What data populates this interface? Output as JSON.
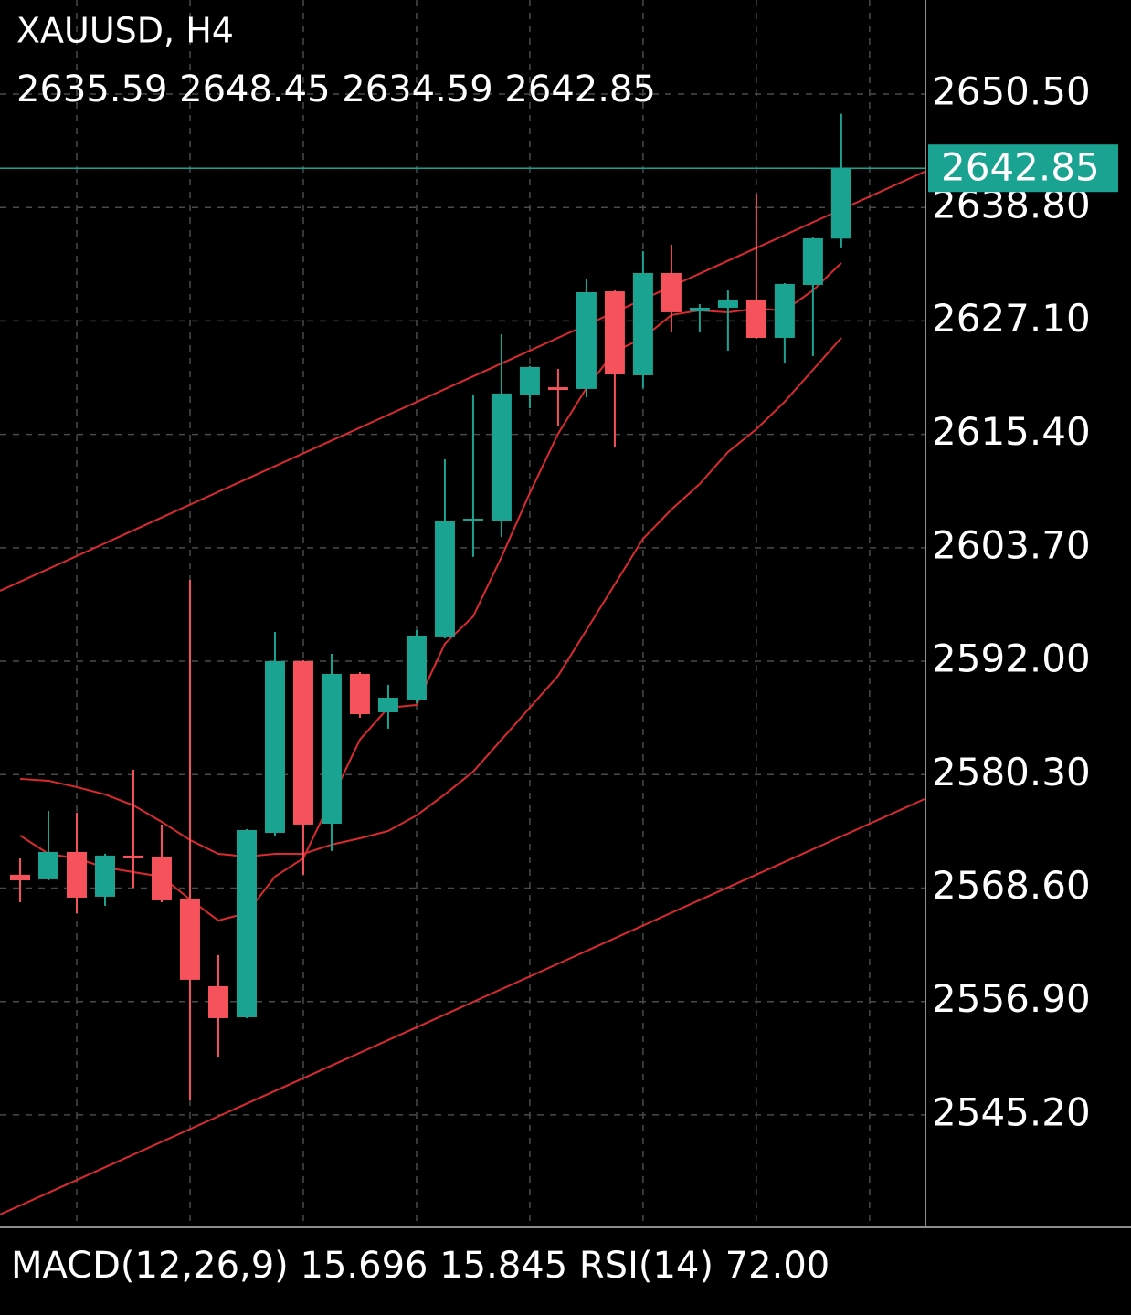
{
  "chart_data": {
    "type": "candlestick",
    "title": "XAUUSD, H4",
    "open": [
      2569.97,
      2569.5,
      2572.32,
      2567.71,
      2571.95,
      2571.85,
      2567.52,
      2558.48,
      2555.27,
      2574.3,
      2592.01,
      2575.24,
      2590.69,
      2586.73,
      2588.05,
      2594.46,
      2606.42,
      2606.51,
      2619.51,
      2620.26,
      2620.08,
      2630.15,
      2621.49,
      2632.04,
      2628.08,
      2628.46,
      2629.31,
      2625.35,
      2630.81,
      2635.59
    ],
    "high": [
      2571.66,
      2576.56,
      2576.37,
      2572.14,
      2580.8,
      2575.15,
      2600.39,
      2561.68,
      2574.68,
      2595.02,
      2592.1,
      2592.76,
      2590.88,
      2589.56,
      2595.21,
      2612.82,
      2619.51,
      2625.73,
      2622.44,
      2622.15,
      2631.47,
      2630.25,
      2634.3,
      2634.96,
      2628.84,
      2630.25,
      2640.23,
      2631.0,
      2635.7,
      2648.45
    ],
    "low": [
      2567.14,
      2569.4,
      2566.01,
      2566.77,
      2568.65,
      2567.14,
      2546.7,
      2551.13,
      2555.17,
      2574.02,
      2569.97,
      2572.42,
      2586.17,
      2585.04,
      2587.67,
      2594.36,
      2602.75,
      2604.82,
      2618.1,
      2616.21,
      2619.23,
      2614.05,
      2620.17,
      2625.92,
      2625.92,
      2624.03,
      2625.25,
      2622.81,
      2623.47,
      2634.59
    ],
    "close": [
      2569.4,
      2572.32,
      2567.61,
      2571.95,
      2571.66,
      2567.33,
      2559.14,
      2555.18,
      2574.58,
      2592.01,
      2575.15,
      2590.69,
      2586.54,
      2588.24,
      2594.55,
      2606.42,
      2606.7,
      2619.61,
      2622.34,
      2619.98,
      2630.06,
      2621.58,
      2632.04,
      2627.99,
      2628.46,
      2629.31,
      2625.35,
      2630.91,
      2635.62,
      2642.85
    ],
    "up_color": "#1ba392",
    "down_color": "#f5525b",
    "series": [
      {
        "color": "#d92b2f",
        "values": [
          2574.02,
          2572.13,
          2571.66,
          2570.72,
          2570.25,
          2569.78,
          2567.42,
          2565.26,
          2566.01,
          2569.78,
          2571.66,
          2577.78,
          2583.91,
          2587.2,
          2587.49,
          2593.8,
          2596.62,
          2602.74,
          2609.34,
          2615.46,
          2620.17,
          2623.94,
          2625.35,
          2627.71,
          2628.18,
          2627.99,
          2628.36,
          2628.18,
          2630.25,
          2633.07
        ]
      },
      {
        "color": "#d92b2f",
        "values": [
          2579.86,
          2579.67,
          2579.01,
          2578.26,
          2577.13,
          2575.43,
          2573.55,
          2572.13,
          2571.85,
          2572.13,
          2572.13,
          2573.08,
          2573.73,
          2574.49,
          2576.09,
          2578.26,
          2580.61,
          2583.91,
          2587.2,
          2590.5,
          2595.21,
          2599.92,
          2604.63,
          2607.64,
          2610.28,
          2613.58,
          2615.93,
          2618.76,
          2622.05,
          2625.35
        ]
      }
    ],
    "channels": [
      {
        "color": "#d92b2f",
        "x": [
          -0.71,
          31.94
        ],
        "y": [
          2599.26,
          2642.49
        ]
      },
      {
        "color": "#d92b2f",
        "x": [
          -0.71,
          31.94
        ],
        "y": [
          2534.93,
          2577.78
        ]
      }
    ],
    "last_price": 2642.85,
    "last_price_color": "#1ba392",
    "xlim": [
      -0.71,
      31.94
    ],
    "ylim": [
      2533.7,
      2660.2
    ],
    "yticks": [
      {
        "value": 2650.5,
        "label": "2650.50"
      },
      {
        "value": 2638.8,
        "label": "2638.80"
      },
      {
        "value": 2627.1,
        "label": "2627.10"
      },
      {
        "value": 2615.4,
        "label": "2615.40"
      },
      {
        "value": 2603.7,
        "label": "2603.70"
      },
      {
        "value": 2592.0,
        "label": "2592.00"
      },
      {
        "value": 2580.3,
        "label": "2580.30"
      },
      {
        "value": 2568.6,
        "label": "2568.60"
      },
      {
        "value": 2556.9,
        "label": "2556.90"
      },
      {
        "value": 2545.2,
        "label": "2545.20"
      }
    ],
    "xgrid": [
      2,
      6,
      10,
      14,
      18,
      22,
      26,
      30
    ],
    "grid": true,
    "indicators": [
      "MACD(12,26,9)",
      "15.696",
      "15.845",
      "RSI(14)",
      "72.00"
    ]
  }
}
